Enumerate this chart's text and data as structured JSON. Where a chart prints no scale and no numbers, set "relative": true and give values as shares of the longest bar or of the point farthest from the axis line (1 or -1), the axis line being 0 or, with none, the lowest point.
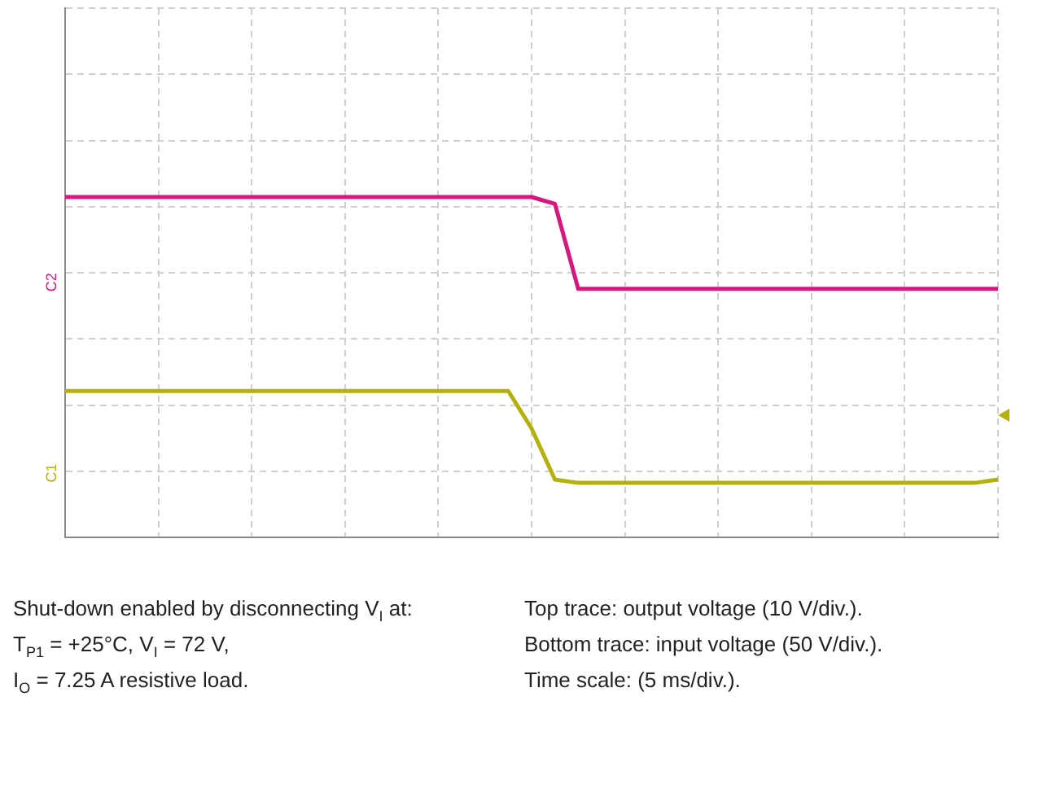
{
  "chart_data": {
    "type": "line",
    "relative": true,
    "grid": true,
    "legend": false,
    "tick_labels": false,
    "marker": "none",
    "line_style": "solid",
    "categories": [
      null,
      null,
      null,
      null,
      null,
      null,
      null,
      null,
      null,
      null,
      null,
      null,
      null,
      null,
      null,
      null,
      null,
      null,
      null,
      null,
      null,
      null,
      null,
      null,
      null,
      null,
      null,
      null,
      null,
      null,
      null,
      null,
      null,
      null,
      null,
      null,
      null,
      null,
      null,
      null,
      null
    ],
    "series": [
      {
        "color": "#d6177e",
        "values": [
          1,
          1,
          1,
          1,
          1,
          1,
          1,
          1,
          1,
          1,
          1,
          1,
          1,
          1,
          1,
          1,
          1,
          1,
          1,
          1,
          1,
          0.98,
          0.73,
          0.73,
          0.73,
          0.73,
          0.73,
          0.73,
          0.73,
          0.73,
          0.73,
          0.73,
          0.73,
          0.73,
          0.73,
          0.73,
          0.73,
          0.73,
          0.73,
          0.73,
          0.73
        ]
      },
      {
        "color": "#b5b10c",
        "values": [
          0.43,
          0.43,
          0.43,
          0.43,
          0.43,
          0.43,
          0.43,
          0.43,
          0.43,
          0.43,
          0.43,
          0.43,
          0.43,
          0.43,
          0.43,
          0.43,
          0.43,
          0.43,
          0.43,
          0.43,
          0.32,
          0.17,
          0.16,
          0.16,
          0.16,
          0.16,
          0.16,
          0.16,
          0.16,
          0.16,
          0.16,
          0.16,
          0.16,
          0.16,
          0.16,
          0.16,
          0.16,
          0.16,
          0.16,
          0.16,
          0.17
        ]
      }
    ],
    "annotations": [
      "C2",
      "C1",
      "Shut-down enabled by disconnecting V$_{I}$ at:",
      "T$_{P1}$ = +25°C, V$_{I}$ = 72 V,",
      "I$_{O}$ = 7.25 A resistive load.",
      "Top trace: output voltage (10 V/div.).",
      "Bottom trace: input voltage (50 V/div.).",
      "Time scale: (5 ms/div.)."
    ]
  }
}
